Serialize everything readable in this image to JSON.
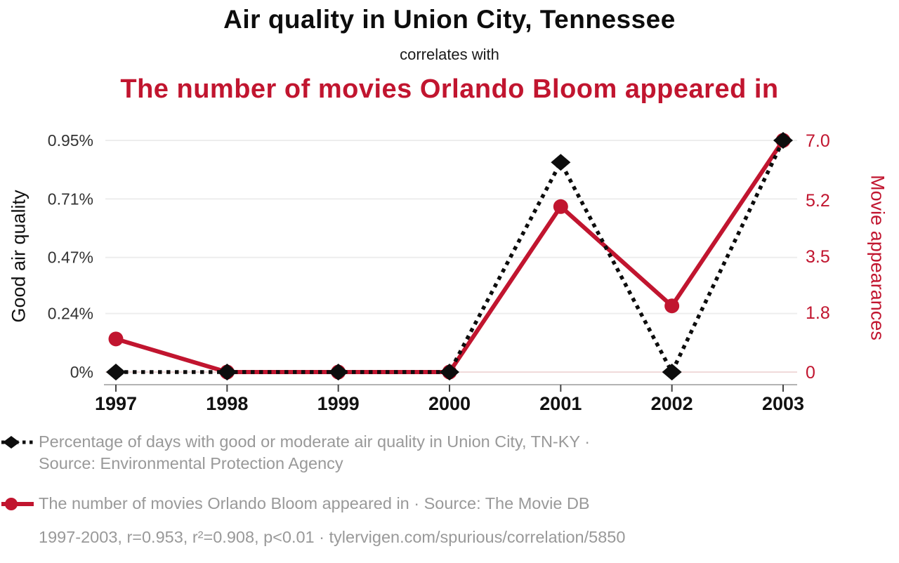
{
  "header": {
    "title1": "Air quality in Union City, Tennessee",
    "connector": "correlates with",
    "title2": "The number of movies Orlando Bloom appeared in"
  },
  "chart_data": {
    "type": "line",
    "x": [
      1997,
      1998,
      1999,
      2000,
      2001,
      2002,
      2003
    ],
    "x_tick_labels": [
      "1997",
      "1998",
      "1999",
      "2000",
      "2001",
      "2002",
      "2003"
    ],
    "series": [
      {
        "name": "Percentage of days with good or moderate air quality in Union City, TN-KY",
        "axis": "left",
        "style": "dotted-diamond",
        "color": "#0d0d0d",
        "values": [
          0,
          0,
          0,
          0,
          0.86,
          0,
          0.95
        ]
      },
      {
        "name": "The number of movies Orlando Bloom appeared in",
        "axis": "right",
        "style": "solid-circle",
        "color": "#c1152f",
        "values": [
          1,
          0,
          0,
          0,
          5,
          2,
          7
        ]
      }
    ],
    "left_axis": {
      "label": "Good air quality",
      "ticks": [
        "0%",
        "0.24%",
        "0.47%",
        "0.71%",
        "0.95%"
      ],
      "tick_values": [
        0,
        0.24,
        0.47,
        0.71,
        0.95
      ],
      "max": 0.95,
      "ylim": [
        0,
        0.95
      ]
    },
    "right_axis": {
      "label": "Movie appearances",
      "ticks": [
        "0",
        "1.8",
        "3.5",
        "5.2",
        "7.0"
      ],
      "tick_values": [
        0,
        1.8,
        3.5,
        5.2,
        7.0
      ],
      "max": 7.0,
      "ylim": [
        0,
        7.0
      ]
    },
    "grid": "horizontal",
    "legend_position": "bottom"
  },
  "legend": [
    {
      "series": "air-quality",
      "lines": [
        "Percentage of days with good or moderate air quality in Union City, TN-KY ·",
        "Source: Environmental Protection Agency"
      ]
    },
    {
      "series": "movie-appearances",
      "lines": [
        "The number of movies Orlando Bloom appeared in · Source: The Movie DB"
      ]
    }
  ],
  "footer": {
    "text": "1997-2003, r=0.953, r²=0.908, p<0.01 · tylervigen.com/spurious/correlation/5850"
  },
  "colors": {
    "red": "#c1152f",
    "black": "#0d0d0d",
    "legend_text": "#999999",
    "gridline": "#ededed",
    "gridline_zero": "#f0dada",
    "axis_line": "#b3b3b3",
    "tick_label_left": "#333333",
    "year_label": "#111111"
  }
}
